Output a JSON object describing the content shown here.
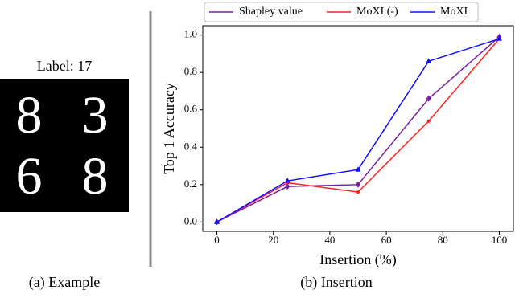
{
  "example": {
    "label": "Label: 17",
    "digits": [
      "8",
      "3",
      "6",
      "8"
    ],
    "caption": "(a) Example"
  },
  "chart_data": {
    "type": "line",
    "caption": "(b) Insertion",
    "xlabel": "Insertion (%)",
    "ylabel": "Top 1 Accuracy",
    "x": [
      0,
      25,
      50,
      75,
      100
    ],
    "series": [
      {
        "name": "Shapley value",
        "color": "#7b1fa2",
        "marker": "diamond",
        "values": [
          0.0,
          0.19,
          0.2,
          0.66,
          0.99
        ]
      },
      {
        "name": "MoXI (-)",
        "color": "#ff2020",
        "marker": "circle",
        "values": [
          0.0,
          0.21,
          0.16,
          0.54,
          0.98
        ]
      },
      {
        "name": "MoXI",
        "color": "#1010ff",
        "marker": "triangle",
        "values": [
          0.0,
          0.22,
          0.28,
          0.86,
          0.98
        ]
      }
    ],
    "xlim": [
      -5,
      105
    ],
    "xticks": [
      0,
      20,
      40,
      60,
      80,
      100
    ],
    "ylim": [
      -0.05,
      1.05
    ],
    "yticks": [
      {
        "value": 0,
        "label": "0.0"
      },
      {
        "value": 0.2,
        "label": "0.2"
      },
      {
        "value": 0.4,
        "label": "0.4"
      },
      {
        "value": 0.6,
        "label": "0.6"
      },
      {
        "value": 0.8,
        "label": "0.8"
      },
      {
        "value": 1.0,
        "label": "1.0"
      }
    ],
    "legend": "top"
  }
}
